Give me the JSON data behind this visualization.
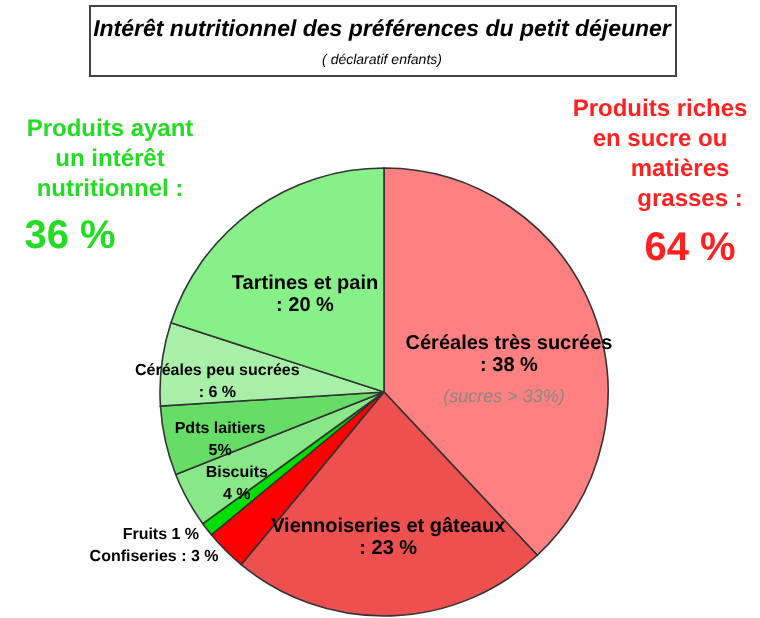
{
  "chart_data": {
    "type": "pie",
    "title": "Intérêt nutritionnel des préférences du petit déjeuner",
    "subtitle": "( déclaratif enfants)",
    "categories": [
      "Céréales très sucrées",
      "Viennoiseries et gâteaux",
      "Confiseries",
      "Fruits",
      "Biscuits",
      "Pdts laitiers",
      "Céréales peu sucrées",
      "Tartines et pain"
    ],
    "values": [
      38,
      23,
      3,
      1,
      4,
      5,
      6,
      20
    ],
    "value_labels": [
      ": 38 %",
      ": 23 %",
      ": 3 %",
      "1 %",
      "4 %",
      "5%",
      ": 6 %",
      ": 20 %"
    ],
    "colors": [
      "#ff8080",
      "#ee5050",
      "#ff0000",
      "#00dd00",
      "#88e888",
      "#66dd66",
      "#a8f0a8",
      "#88f088"
    ],
    "legend": false,
    "annotations": [
      "(sucres > 33%)",
      "Produits ayant",
      "un intérêt",
      "nutritionnel :",
      "36 %",
      "Produits riches",
      "en sucre ou",
      "matières",
      "grasses :",
      "64 %"
    ]
  }
}
